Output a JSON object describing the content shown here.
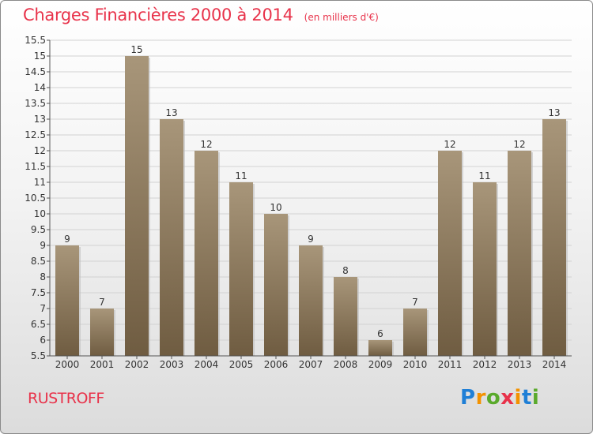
{
  "header": {
    "title": "Charges Financières 2000 à 2014",
    "subtitle": "(en milliers d'€)"
  },
  "footer": {
    "commune": "RUSTROFF",
    "logo": "Proxiti"
  },
  "colors": {
    "bar_top": "#a8967a",
    "bar_bottom": "#6f5c41",
    "title": "#e8324a"
  },
  "chart_data": {
    "type": "bar",
    "title": "Charges Financières 2000 à 2014",
    "subtitle": "(en milliers d'€)",
    "categories": [
      "2000",
      "2001",
      "2002",
      "2003",
      "2004",
      "2005",
      "2006",
      "2007",
      "2008",
      "2009",
      "2010",
      "2011",
      "2012",
      "2013",
      "2014"
    ],
    "values": [
      9,
      7,
      15,
      13,
      12,
      11,
      10,
      9,
      8,
      6,
      7,
      12,
      11,
      12,
      13
    ],
    "value_labels": [
      "9",
      "7",
      "15",
      "13",
      "12",
      "11",
      "10",
      "9",
      "8",
      "6",
      "7",
      "12",
      "11",
      "12",
      "13"
    ],
    "ylim": [
      5.5,
      15.5
    ],
    "yticks": [
      5.5,
      6,
      6.5,
      7,
      7.5,
      8,
      8.5,
      9,
      9.5,
      10,
      10.5,
      11,
      11.5,
      12,
      12.5,
      13,
      13.5,
      14,
      14.5,
      15,
      15.5
    ],
    "ytick_labels": [
      "5.5",
      "6",
      "6.5",
      "7",
      "7.5",
      "8",
      "8.5",
      "9",
      "9.5",
      "10",
      "10.5",
      "11",
      "11.5",
      "12",
      "12.5",
      "13",
      "13.5",
      "14",
      "14.5",
      "15",
      "15.5"
    ],
    "grid": true,
    "xlabel": "",
    "ylabel": ""
  }
}
